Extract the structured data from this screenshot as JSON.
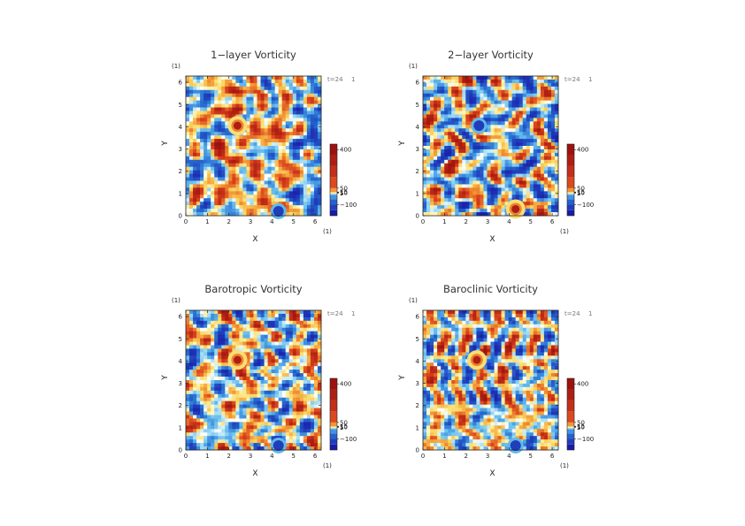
{
  "chart_data": [
    {
      "type": "heatmap",
      "title": "1−layer Vorticity",
      "xlabel": "X",
      "ylabel": "Y",
      "x_unit": "(1)",
      "y_unit": "(1)",
      "xlim": [
        0,
        6.2832
      ],
      "ylim": [
        0,
        6.2832
      ],
      "x_ticks": [
        "0",
        "1",
        "2",
        "3",
        "4",
        "5",
        "6"
      ],
      "y_ticks": [
        "0",
        "1",
        "2",
        "3",
        "4",
        "5",
        "6"
      ],
      "time_label": "t=24",
      "time_unit": "1",
      "colorbar": {
        "ticks": [
          "400",
          "50",
          "15",
          "10",
          "5",
          "−100"
        ],
        "values": [
          400,
          50,
          15,
          10,
          5,
          -100
        ],
        "range": [
          -200,
          450
        ]
      },
      "features": [
        {
          "x": 2.4,
          "y": 4.05,
          "value": 400,
          "label": "vortex core"
        },
        {
          "x": 4.3,
          "y": 0.2,
          "value": -100,
          "label": "negative vortex"
        }
      ]
    },
    {
      "type": "heatmap",
      "title": "2−layer Vorticity",
      "xlabel": "X",
      "ylabel": "Y",
      "x_unit": "(1)",
      "y_unit": "(1)",
      "xlim": [
        0,
        6.2832
      ],
      "ylim": [
        0,
        6.2832
      ],
      "x_ticks": [
        "0",
        "1",
        "2",
        "3",
        "4",
        "5",
        "6"
      ],
      "y_ticks": [
        "0",
        "1",
        "2",
        "3",
        "4",
        "5",
        "6"
      ],
      "time_label": "t=24",
      "time_unit": "1",
      "colorbar": {
        "ticks": [
          "400",
          "50",
          "15",
          "10",
          "5",
          "−100"
        ],
        "values": [
          400,
          50,
          15,
          10,
          5,
          -100
        ],
        "range": [
          -200,
          450
        ]
      },
      "features": [
        {
          "x": 4.3,
          "y": 0.3,
          "value": 400,
          "label": "vortex core"
        },
        {
          "x": 2.6,
          "y": 4.05,
          "value": -100,
          "label": "negative vortex"
        }
      ]
    },
    {
      "type": "heatmap",
      "title": "Barotropic Vorticity",
      "xlabel": "X",
      "ylabel": "Y",
      "x_unit": "(1)",
      "y_unit": "(1)",
      "xlim": [
        0,
        6.2832
      ],
      "ylim": [
        0,
        6.2832
      ],
      "x_ticks": [
        "0",
        "1",
        "2",
        "3",
        "4",
        "5",
        "6"
      ],
      "y_ticks": [
        "0",
        "1",
        "2",
        "3",
        "4",
        "5",
        "6"
      ],
      "time_label": "t=24",
      "time_unit": "1",
      "colorbar": {
        "ticks": [
          "400",
          "50",
          "15",
          "10",
          "5",
          "−100"
        ],
        "values": [
          400,
          50,
          15,
          10,
          5,
          -100
        ],
        "range": [
          -200,
          450
        ]
      },
      "features": [
        {
          "x": 2.4,
          "y": 4.05,
          "value": 400,
          "label": "vortex core"
        },
        {
          "x": 4.3,
          "y": 0.2,
          "value": -100,
          "label": "negative vortex"
        }
      ]
    },
    {
      "type": "heatmap",
      "title": "Baroclinic Vorticity",
      "xlabel": "X",
      "ylabel": "Y",
      "x_unit": "(1)",
      "y_unit": "(1)",
      "xlim": [
        0,
        6.2832
      ],
      "ylim": [
        0,
        6.2832
      ],
      "x_ticks": [
        "0",
        "1",
        "2",
        "3",
        "4",
        "5",
        "6"
      ],
      "y_ticks": [
        "0",
        "1",
        "2",
        "3",
        "4",
        "5",
        "6"
      ],
      "time_label": "t=24",
      "time_unit": "1",
      "colorbar": {
        "ticks": [
          "400",
          "50",
          "15",
          "10",
          "5",
          "−100"
        ],
        "values": [
          400,
          50,
          15,
          10,
          5,
          -100
        ],
        "range": [
          -200,
          450
        ]
      },
      "features": [
        {
          "x": 2.5,
          "y": 4.05,
          "value": 400,
          "label": "vortex core"
        },
        {
          "x": 4.3,
          "y": 0.2,
          "value": -100,
          "label": "negative vortex"
        }
      ]
    }
  ],
  "colors": {
    "strong_positive": "#c81e14",
    "positive": "#f08a32",
    "weak_positive": "#fde68a",
    "zero": "#ffffff",
    "weak_negative": "#9fd8f2",
    "negative": "#2d8fd4",
    "strong_negative": "#1a1aa8"
  }
}
